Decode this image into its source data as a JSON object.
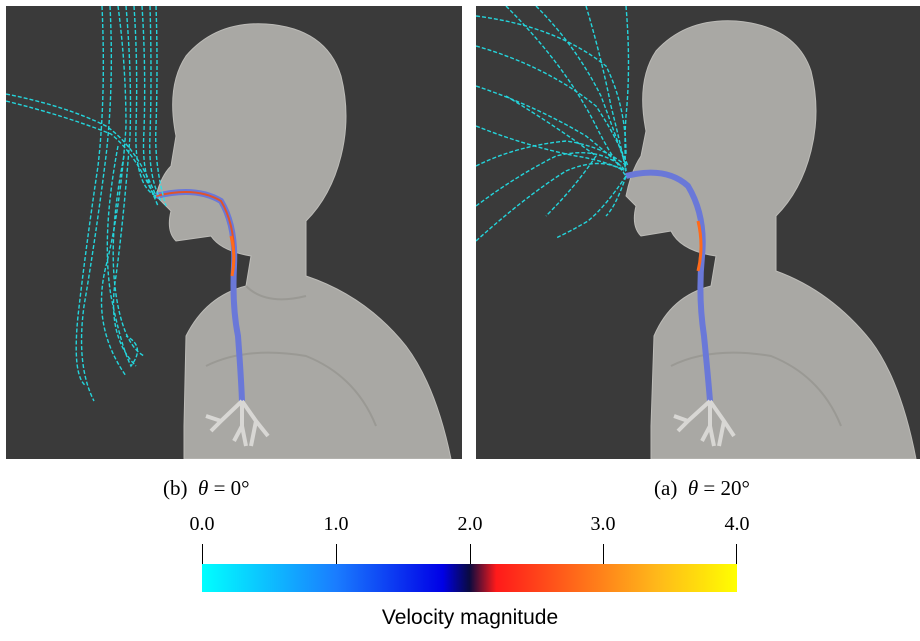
{
  "panels": [
    {
      "caption_prefix": "(b)",
      "caption_symbol": "θ",
      "caption_value": "= 0°"
    },
    {
      "caption_prefix": "(a)",
      "caption_symbol": "θ",
      "caption_value": "= 20°"
    }
  ],
  "colorbar": {
    "title": "Velocity magnitude",
    "ticks": [
      "0.0",
      "1.0",
      "2.0",
      "3.0",
      "4.0"
    ],
    "min": 0.0,
    "max": 4.0,
    "colors": {
      "low": "#00ffff",
      "mid_low": "#0000e6",
      "mid_high": "#ff1a1a",
      "high": "#ffff00"
    }
  },
  "colors": {
    "background": "#3a3a3a",
    "body": "#a9a8a4",
    "streamline": "#22e6ee"
  }
}
